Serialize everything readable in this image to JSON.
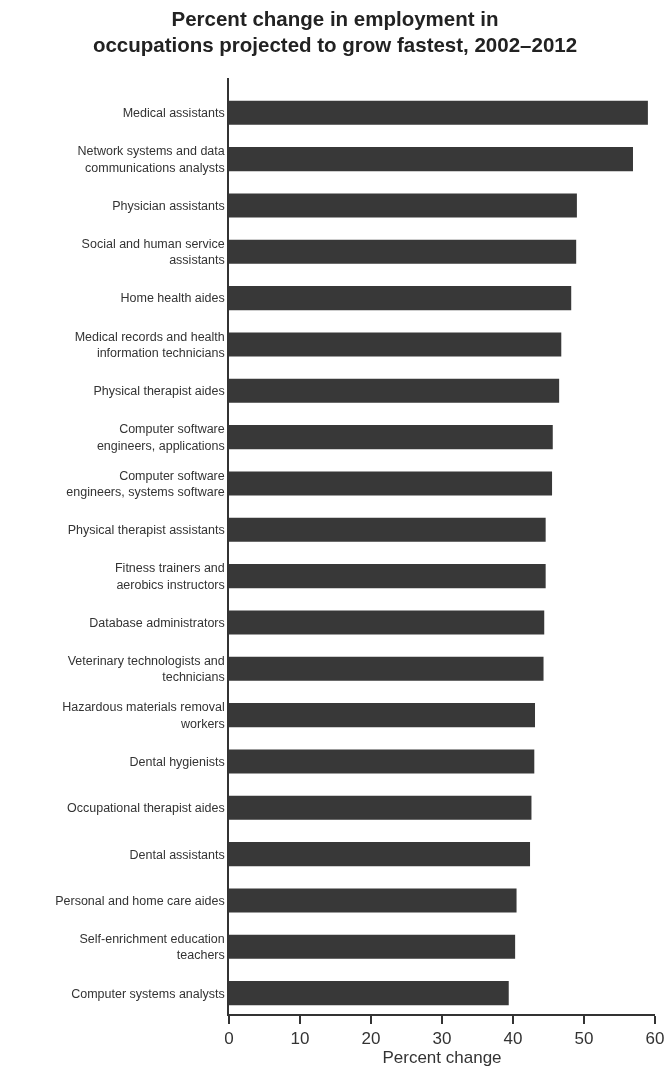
{
  "chart_data": {
    "type": "bar",
    "orientation": "horizontal",
    "title": "Percent change in employment in\noccupations projected to grow fastest, 2002–2012",
    "xlabel": "Percent change",
    "categories": [
      "Medical assistants",
      "Network systems and data\ncommunications analysts",
      "Physician assistants",
      "Social and human service\nassistants",
      "Home health aides",
      "Medical records and health\ninformation technicians",
      "Physical therapist aides",
      "Computer software\nengineers, applications",
      "Computer software\nengineers, systems software",
      "Physical therapist assistants",
      "Fitness trainers and\naerobics instructors",
      "Database administrators",
      "Veterinary technologists and\ntechnicians",
      "Hazardous materials removal\nworkers",
      "Dental hygienists",
      "Occupational therapist aides",
      "Dental assistants",
      "Personal and home care aides",
      "Self-enrichment education\nteachers",
      "Computer systems analysts"
    ],
    "values": [
      59.0,
      56.9,
      49.0,
      48.9,
      48.2,
      46.8,
      46.5,
      45.6,
      45.5,
      44.6,
      44.6,
      44.4,
      44.3,
      43.1,
      43.0,
      42.6,
      42.4,
      40.5,
      40.3,
      39.4
    ],
    "color": "#383838",
    "xlim": [
      0,
      60
    ],
    "xticks": [
      0,
      10,
      20,
      30,
      40,
      50,
      60
    ],
    "grid": false
  }
}
